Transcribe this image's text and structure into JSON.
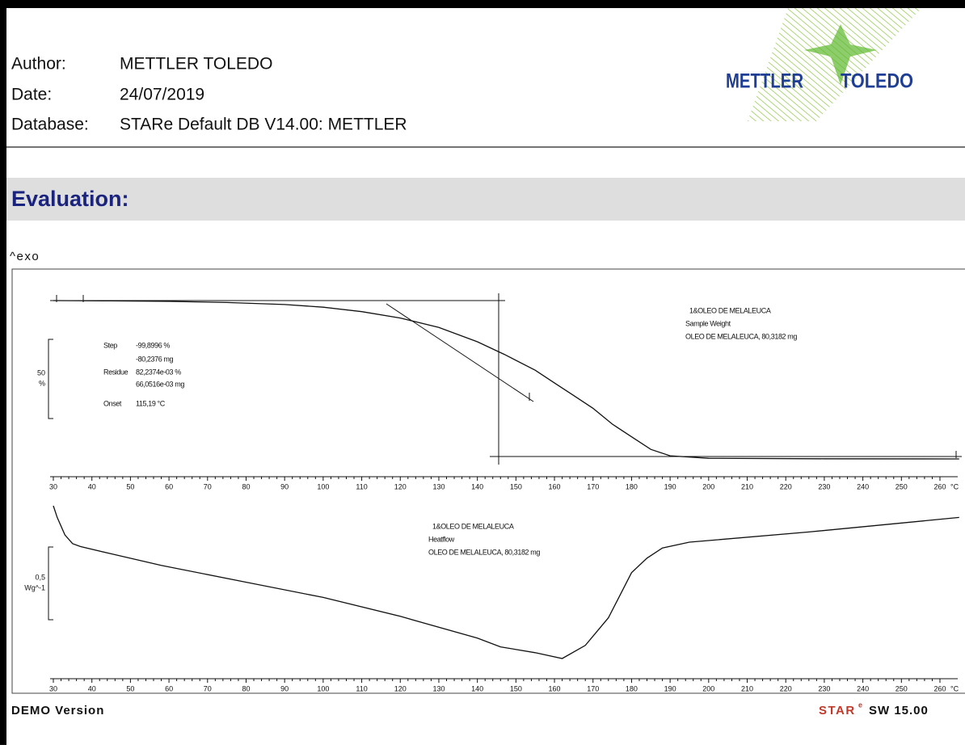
{
  "header": {
    "author_label": "Author:",
    "author": "METTLER  TOLEDO",
    "date_label": "Date:",
    "date": "24/07/2019",
    "database_label": "Database:",
    "database": "STARe Default DB V14.00: METTLER"
  },
  "logo": {
    "left": "METTLER",
    "right": "TOLEDO"
  },
  "section_title": "Evaluation:",
  "exo_label": "^exo",
  "chart_data": [
    {
      "type": "line",
      "x_unit": "°C",
      "xlim": [
        30,
        260
      ],
      "xticks": [
        30,
        40,
        50,
        60,
        70,
        80,
        90,
        100,
        110,
        120,
        130,
        140,
        150,
        160,
        170,
        180,
        190,
        200,
        210,
        220,
        230,
        240,
        250,
        260
      ],
      "ylim": [
        -5,
        105
      ],
      "scale_label": [
        "50",
        "%"
      ],
      "legend": [
        "1&OLEO DE MELALEUCA",
        "Sample Weight",
        "OLEO DE MELALEUCA, 80,3182 mg"
      ],
      "annotations": [
        [
          "Step",
          "-99,8996 %"
        ],
        [
          "",
          "-80,2376 mg"
        ],
        [
          "Residue",
          "82,2374e-03 %"
        ],
        [
          "",
          "66,0516e-03 mg"
        ],
        [
          "Onset",
          "115,19 °C"
        ]
      ],
      "x": [
        30,
        45,
        60,
        75,
        90,
        100,
        110,
        120,
        130,
        140,
        147,
        155,
        160,
        165,
        170,
        175,
        180,
        185,
        190,
        200,
        230,
        265
      ],
      "series": [
        {
          "color": "#111111",
          "values": [
            100,
            99.8,
            99.5,
            98.8,
            97.5,
            95.8,
            93,
            89,
            83,
            74,
            66,
            56,
            48,
            40,
            32,
            22,
            14,
            6,
            2,
            0.4,
            0.1,
            0
          ]
        }
      ]
    },
    {
      "type": "line",
      "x_unit": "°C",
      "xlim": [
        30,
        260
      ],
      "xticks": [
        30,
        40,
        50,
        60,
        70,
        80,
        90,
        100,
        110,
        120,
        130,
        140,
        150,
        160,
        170,
        180,
        190,
        200,
        210,
        220,
        230,
        240,
        250,
        260
      ],
      "ylim": [
        -1.15,
        0.05
      ],
      "scale_label": [
        "0,5",
        "Wg^-1"
      ],
      "legend": [
        "1&OLEO DE MELALEUCA",
        "Heatflow",
        "OLEO DE MELALEUCA, 80,3182 mg"
      ],
      "x": [
        30,
        31,
        33,
        35,
        37,
        45,
        58,
        79,
        100,
        120,
        140,
        146,
        155,
        162,
        168,
        174,
        180,
        184,
        188,
        195,
        226,
        265
      ],
      "series": [
        {
          "color": "#111111",
          "values": [
            0,
            -0.08,
            -0.2,
            -0.26,
            -0.28,
            -0.33,
            -0.41,
            -0.52,
            -0.63,
            -0.76,
            -0.91,
            -0.97,
            -1.01,
            -1.05,
            -0.96,
            -0.77,
            -0.46,
            -0.36,
            -0.29,
            -0.25,
            -0.18,
            -0.08
          ]
        }
      ]
    }
  ],
  "footer": {
    "left": "DEMO Version",
    "star": "STAR",
    "star_sup": "e",
    "right": "SW 15.00"
  }
}
